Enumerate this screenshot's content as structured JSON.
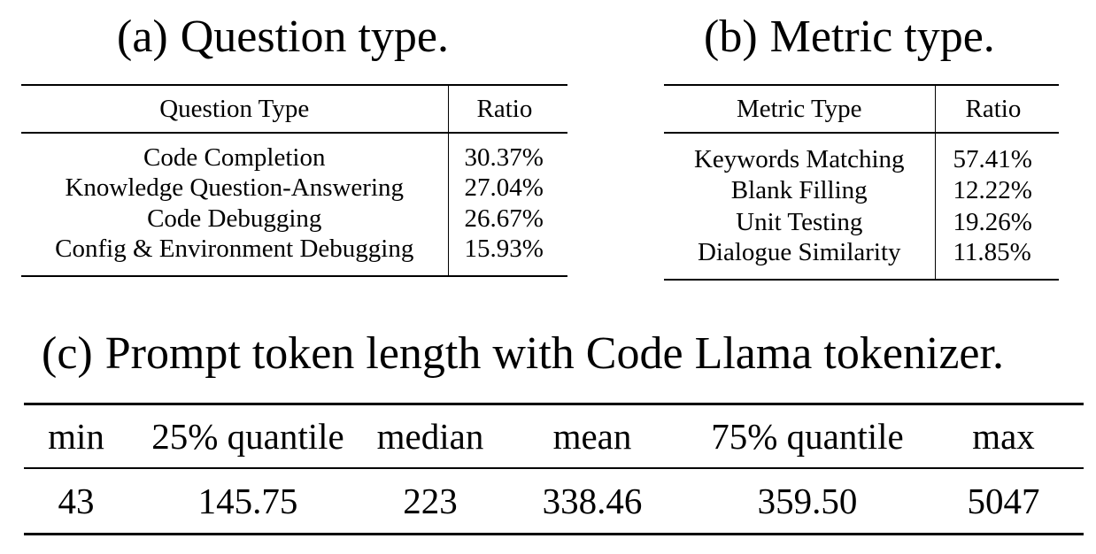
{
  "question_panel": {
    "caption_tag": "(a)",
    "caption_text": "Question type.",
    "header_type": "Question Type",
    "header_ratio": "Ratio",
    "rows": [
      {
        "type": "Code Completion",
        "ratio": "30.37%"
      },
      {
        "type": "Knowledge Question-Answering",
        "ratio": "27.04%"
      },
      {
        "type": "Code Debugging",
        "ratio": "26.67%"
      },
      {
        "type": "Config & Environment Debugging",
        "ratio": "15.93%"
      }
    ]
  },
  "metric_panel": {
    "caption_tag": "(b)",
    "caption_text": "Metric type.",
    "header_type": "Metric Type",
    "header_ratio": "Ratio",
    "rows": [
      {
        "type": "Keywords Matching",
        "ratio": "57.41%"
      },
      {
        "type": "Blank Filling",
        "ratio": "12.22%"
      },
      {
        "type": "Unit Testing",
        "ratio": "19.26%"
      },
      {
        "type": "Dialogue Similarity",
        "ratio": "11.85%"
      }
    ]
  },
  "token_panel": {
    "caption_tag": "(c)",
    "caption_text": "Prompt token length with Code Llama tokenizer.",
    "headers": [
      "min",
      "25% quantile",
      "median",
      "mean",
      "75% quantile",
      "max"
    ],
    "values": [
      "43",
      "145.75",
      "223",
      "338.46",
      "359.50",
      "5047"
    ]
  }
}
